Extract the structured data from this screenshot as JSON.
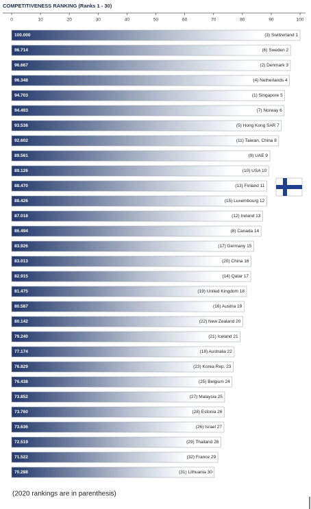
{
  "chart_data": {
    "type": "bar",
    "orientation": "horizontal",
    "title": "COMPETITIVENESS RANKING (Ranks 1 - 30)",
    "categories": [
      "(3) Switzerland 1",
      "(6) Sweden 2",
      "(2) Denmark 3",
      "(4) Netherlands 4",
      "(1) Singapore 5",
      "(7) Norway 6",
      "(5) Hong Kong SAR 7",
      "(11) Taiwan, China 8",
      "(9) UAE 9",
      "(10) USA 10",
      "(13) Finland 11",
      "(15) Luxembourg 12",
      "(12) Ireland 13",
      "(8) Canada 14",
      "(17) Germany 15",
      "(20) China 16",
      "(14) Qatar 17",
      "(19) United Kingdom 18",
      "(16) Austria 19",
      "(22) New Zealand 20",
      "(21) Iceland 21",
      "(18) Australia 22",
      "(23) Korea Rep. 23",
      "(25) Belgium 24",
      "(27) Malaysia 25",
      "(28) Estonia 26",
      "(26) Israel 27",
      "(29) Thailand 28",
      "(32) France 29",
      "(31) Lithuania 30"
    ],
    "values": [
      100,
      96.714,
      96.667,
      96.348,
      94.703,
      94.493,
      93.538,
      92.602,
      89.561,
      89.126,
      88.47,
      88.426,
      87.018,
      86.494,
      83.926,
      83.013,
      82.915,
      81.475,
      80.587,
      80.142,
      79.24,
      77.174,
      76.829,
      76.438,
      73.852,
      73.76,
      73.636,
      72.519,
      71.522,
      70.288
    ],
    "value_labels": [
      "100.000",
      "96.714",
      "96.667",
      "96.348",
      "94.703",
      "94.493",
      "93.538",
      "92.602",
      "89.561",
      "89.126",
      "88.470",
      "88.426",
      "87.018",
      "86.494",
      "83.926",
      "83.013",
      "82.915",
      "81.475",
      "80.587",
      "80.142",
      "79.240",
      "77.174",
      "76.829",
      "76.438",
      "73.852",
      "73.760",
      "73.636",
      "72.519",
      "71.522",
      "70.288"
    ],
    "color": "#233a6b",
    "xlim": [
      0,
      100
    ],
    "xticks": [
      0,
      10,
      20,
      30,
      40,
      50,
      60,
      70,
      80,
      90,
      100
    ],
    "note": "(2020 rankings are in parenthesis)"
  }
}
